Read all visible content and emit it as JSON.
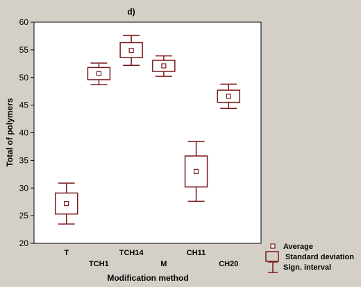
{
  "chart_data": {
    "type": "box",
    "title": "d)",
    "xlabel": "Modification method",
    "ylabel": "Total of polymers",
    "ylim": [
      20,
      60
    ],
    "yticks": [
      20,
      25,
      30,
      35,
      40,
      45,
      50,
      55,
      60
    ],
    "grid": false,
    "categories": [
      "T",
      "TCH1",
      "TCH14",
      "M",
      "CH11",
      "CH20"
    ],
    "mean": [
      27.2,
      50.7,
      54.9,
      52.1,
      33.0,
      46.6
    ],
    "sd_low": [
      25.3,
      49.6,
      53.6,
      51.1,
      30.2,
      45.5
    ],
    "sd_high": [
      29.1,
      51.8,
      56.3,
      53.1,
      35.8,
      47.7
    ],
    "ci_low": [
      23.5,
      48.7,
      52.2,
      50.2,
      27.6,
      44.4
    ],
    "ci_high": [
      30.9,
      52.6,
      57.6,
      53.9,
      38.4,
      48.8
    ],
    "legend": {
      "position": "bottom-right",
      "items": [
        "Average",
        "Standard deviation",
        "Sign. interval"
      ]
    },
    "colors": {
      "plot": "#7a1a1a",
      "background": "#d4d0c8",
      "plot_area": "#ffffff"
    }
  }
}
